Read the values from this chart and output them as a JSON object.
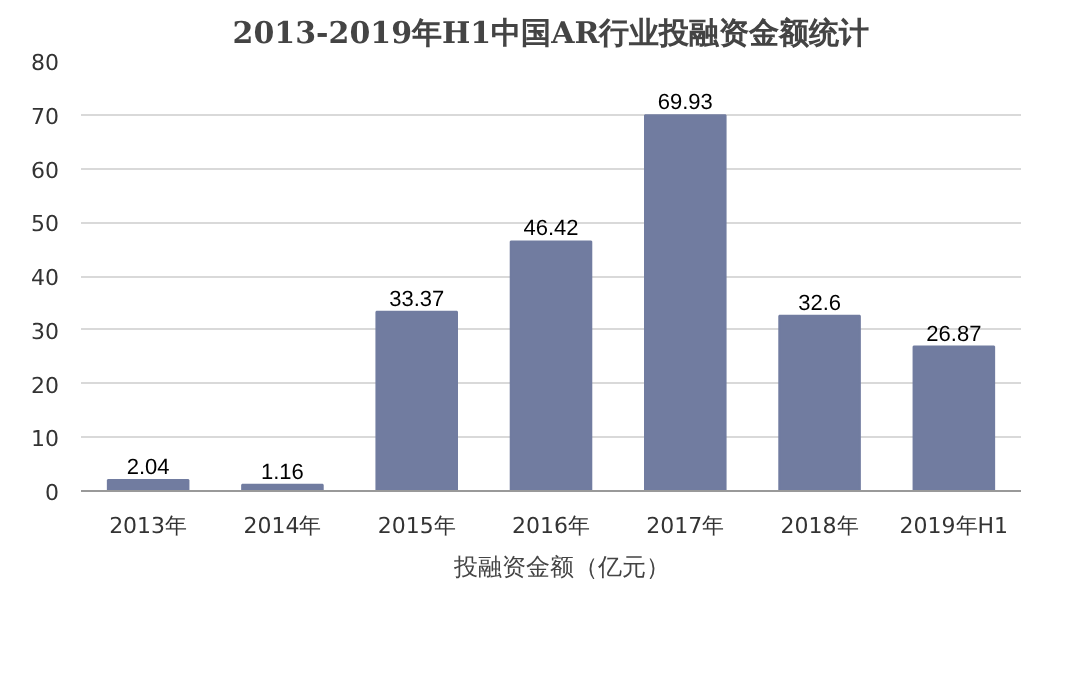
{
  "chart_data": {
    "type": "bar",
    "title": "2013-2019年H1中国AR行业投融资金额统计",
    "categories": [
      "2013年",
      "2014年",
      "2015年",
      "2016年",
      "2017年",
      "2018年",
      "2019年H1"
    ],
    "series": [
      {
        "name": "投融资金额（亿元）",
        "color": "#717ca0",
        "values": [
          2.04,
          1.16,
          33.37,
          46.42,
          69.93,
          32.6,
          26.87
        ]
      }
    ],
    "ylim": [
      0,
      80
    ],
    "yticks": [
      0,
      10,
      20,
      30,
      40,
      50,
      60,
      70,
      80
    ],
    "grid": "y",
    "legend": "bottom",
    "data_labels": true
  }
}
